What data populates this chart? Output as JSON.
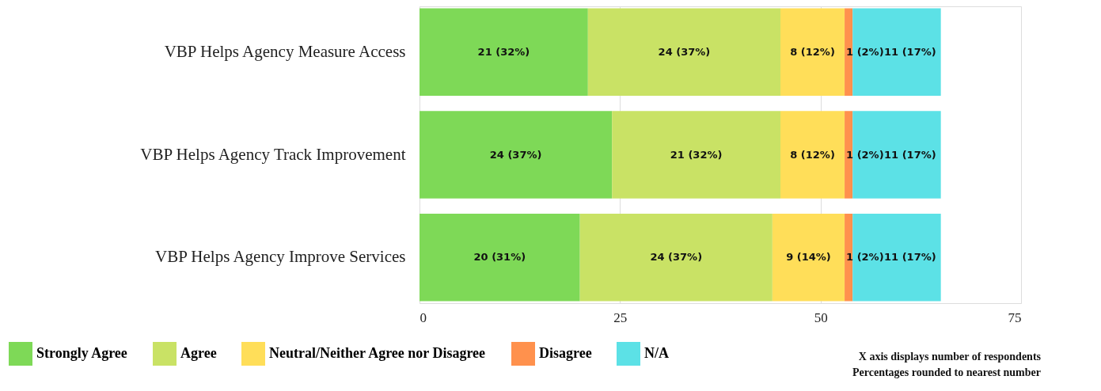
{
  "chart_data": {
    "type": "bar",
    "orientation": "horizontal",
    "stacked": true,
    "categories": [
      "VBP Helps Agency Measure Access",
      "VBP Helps Agency Track Improvement",
      "VBP Helps Agency Improve Services"
    ],
    "series": [
      {
        "name": "Strongly Agree",
        "color": "#7ed957",
        "values": [
          21,
          24,
          20
        ],
        "value_labels": [
          "21 (32%)",
          "24 (37%)",
          "20 (31%)"
        ]
      },
      {
        "name": "Agree",
        "color": "#c9e265",
        "values": [
          24,
          21,
          24
        ],
        "value_labels": [
          "24 (37%)",
          "21 (32%)",
          "24 (37%)"
        ]
      },
      {
        "name": "Neutral/Neither Agree nor Disagree",
        "color": "#ffde59",
        "values": [
          8,
          8,
          9
        ],
        "value_labels": [
          "8 (12%)",
          "8 (12%)",
          "9 (14%)"
        ]
      },
      {
        "name": "Disagree",
        "color": "#ff914d",
        "values": [
          1,
          1,
          1
        ],
        "value_labels": [
          "1 (2%)",
          "1 (2%)",
          "1 (2%)"
        ]
      },
      {
        "name": "N/A",
        "color": "#5ce1e6",
        "values": [
          11,
          11,
          11
        ],
        "value_labels": [
          "11 (17%)",
          "11 (17%)",
          "11 (17%)"
        ]
      }
    ],
    "xlim": [
      0,
      75
    ],
    "xticks": [
      0,
      25,
      50,
      75
    ],
    "grid": "x",
    "legend": "bottom",
    "annotations": [
      "X axis displays number of respondents",
      "Percentages rounded to nearest number"
    ]
  }
}
